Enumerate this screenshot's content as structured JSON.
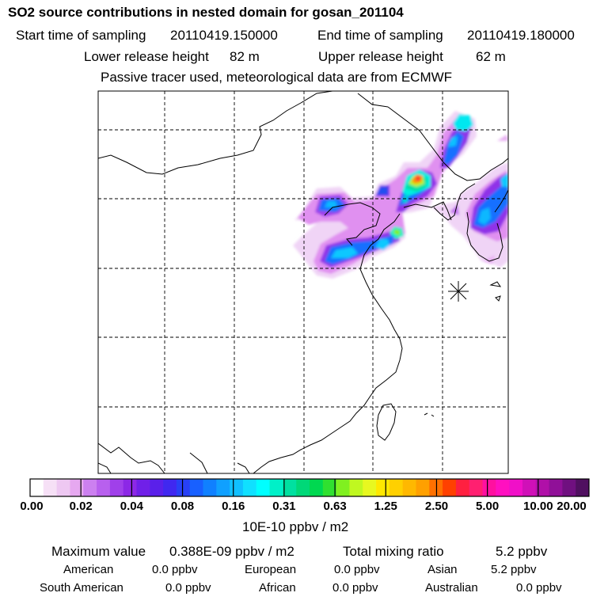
{
  "title": "SO2 source contributions in nested domain for gosan_201104",
  "sampling": {
    "start_label": "Start time of sampling",
    "start_value": "20110419.150000",
    "end_label": "End time of sampling",
    "end_value": "20110419.180000"
  },
  "release": {
    "lower_label": "Lower release height",
    "lower_value": "82 m",
    "upper_label": "Upper release height",
    "upper_value": "62 m"
  },
  "note": "Passive tracer used, meteorological data are from ECMWF",
  "station_marker": "receptor-gosan",
  "colorbar": {
    "ticks": [
      "0.00",
      "0.02",
      "0.04",
      "0.08",
      "0.16",
      "0.31",
      "0.63",
      "1.25",
      "2.50",
      "5.00",
      "10.00",
      "20.00"
    ],
    "unit": "10E-10 ppbv / m2",
    "colors": [
      "#ffffff",
      "#f6e0f6",
      "#eec8f2",
      "#e6a8f0",
      "#cc80f0",
      "#b860ee",
      "#a040ea",
      "#8c28e6",
      "#7020e8",
      "#5a20ea",
      "#4028f0",
      "#2840f6",
      "#1860ff",
      "#1080ff",
      "#10a0ff",
      "#10c0ff",
      "#10e0ff",
      "#00ffff",
      "#00f0c8",
      "#00e0a0",
      "#00d878",
      "#00d850",
      "#30e030",
      "#80f020",
      "#c0f820",
      "#e8f820",
      "#ffe800",
      "#ffd000",
      "#ffb800",
      "#ffa000",
      "#ff7000",
      "#ff4000",
      "#ff2040",
      "#ff2070",
      "#ff10a0",
      "#ff10c0",
      "#f010c8",
      "#d010b8",
      "#b010a8",
      "#901098",
      "#701080",
      "#501060"
    ]
  },
  "stats": {
    "max_label": "Maximum value",
    "max_value": "0.388E-09 ppbv / m2",
    "total_label": "Total mixing ratio",
    "total_value": "5.2 ppbv"
  },
  "regions": [
    {
      "name": "American",
      "value": "0.0 ppbv"
    },
    {
      "name": "European",
      "value": "0.0 ppbv"
    },
    {
      "name": "Asian",
      "value": "5.2 ppbv"
    },
    {
      "name": "South American",
      "value": "0.0 ppbv"
    },
    {
      "name": "African",
      "value": "0.0 ppbv"
    },
    {
      "name": "Australian",
      "value": "0.0 ppbv"
    }
  ]
}
